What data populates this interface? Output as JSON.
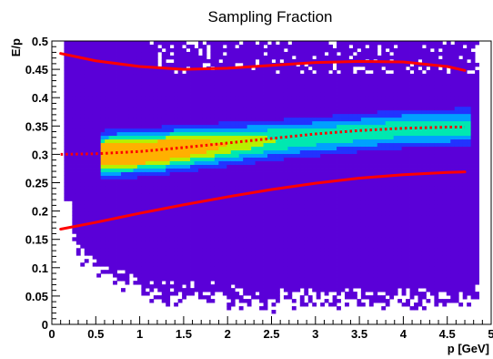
{
  "chart_data": {
    "type": "heatmap",
    "title": "Sampling Fraction",
    "xlabel": "p [GeV]",
    "ylabel": "E/p",
    "xlim": [
      0,
      5
    ],
    "ylim": [
      0,
      0.5
    ],
    "x_ticks": [
      "0",
      "0.5",
      "1",
      "1.5",
      "2",
      "2.5",
      "3",
      "3.5",
      "4",
      "4.5",
      "5"
    ],
    "y_ticks": [
      "0",
      "0.05",
      "0.1",
      "0.15",
      "0.2",
      "0.25",
      "0.3",
      "0.35",
      "0.4",
      "0.45",
      "0.5"
    ],
    "grid": false,
    "legend": "none",
    "colors": {
      "curve": "#ff0000",
      "palette": [
        "#5a00d8",
        "#2233ff",
        "#00a0ff",
        "#00e8b0",
        "#b8f000",
        "#ffb000"
      ]
    },
    "density": {
      "x_range": [
        0.15,
        4.85
      ],
      "core_x_range": [
        0.55,
        4.75
      ],
      "mean_curve": [
        [
          0.6,
          0.3
        ],
        [
          1.0,
          0.303
        ],
        [
          2.0,
          0.318
        ],
        [
          3.0,
          0.332
        ],
        [
          4.0,
          0.345
        ],
        [
          4.7,
          0.348
        ]
      ],
      "peak_near": [
        0.85,
        0.3
      ]
    },
    "series": [
      {
        "style": "solid",
        "x": [
          0.1,
          0.5,
          1.0,
          1.5,
          2.0,
          2.5,
          3.0,
          3.5,
          4.0,
          4.5,
          4.7
        ],
        "y": [
          0.478,
          0.465,
          0.455,
          0.45,
          0.452,
          0.457,
          0.462,
          0.464,
          0.463,
          0.455,
          0.448
        ]
      },
      {
        "style": "dotted",
        "x": [
          0.1,
          0.5,
          1.0,
          1.5,
          2.0,
          2.5,
          3.0,
          3.5,
          4.0,
          4.5,
          4.7
        ],
        "y": [
          0.3,
          0.301,
          0.305,
          0.312,
          0.32,
          0.328,
          0.336,
          0.342,
          0.346,
          0.348,
          0.348
        ]
      },
      {
        "style": "solid",
        "x": [
          0.1,
          0.5,
          1.0,
          1.5,
          2.0,
          2.5,
          3.0,
          3.5,
          4.0,
          4.5,
          4.7
        ],
        "y": [
          0.168,
          0.18,
          0.196,
          0.211,
          0.225,
          0.238,
          0.249,
          0.258,
          0.264,
          0.268,
          0.269
        ]
      }
    ]
  }
}
